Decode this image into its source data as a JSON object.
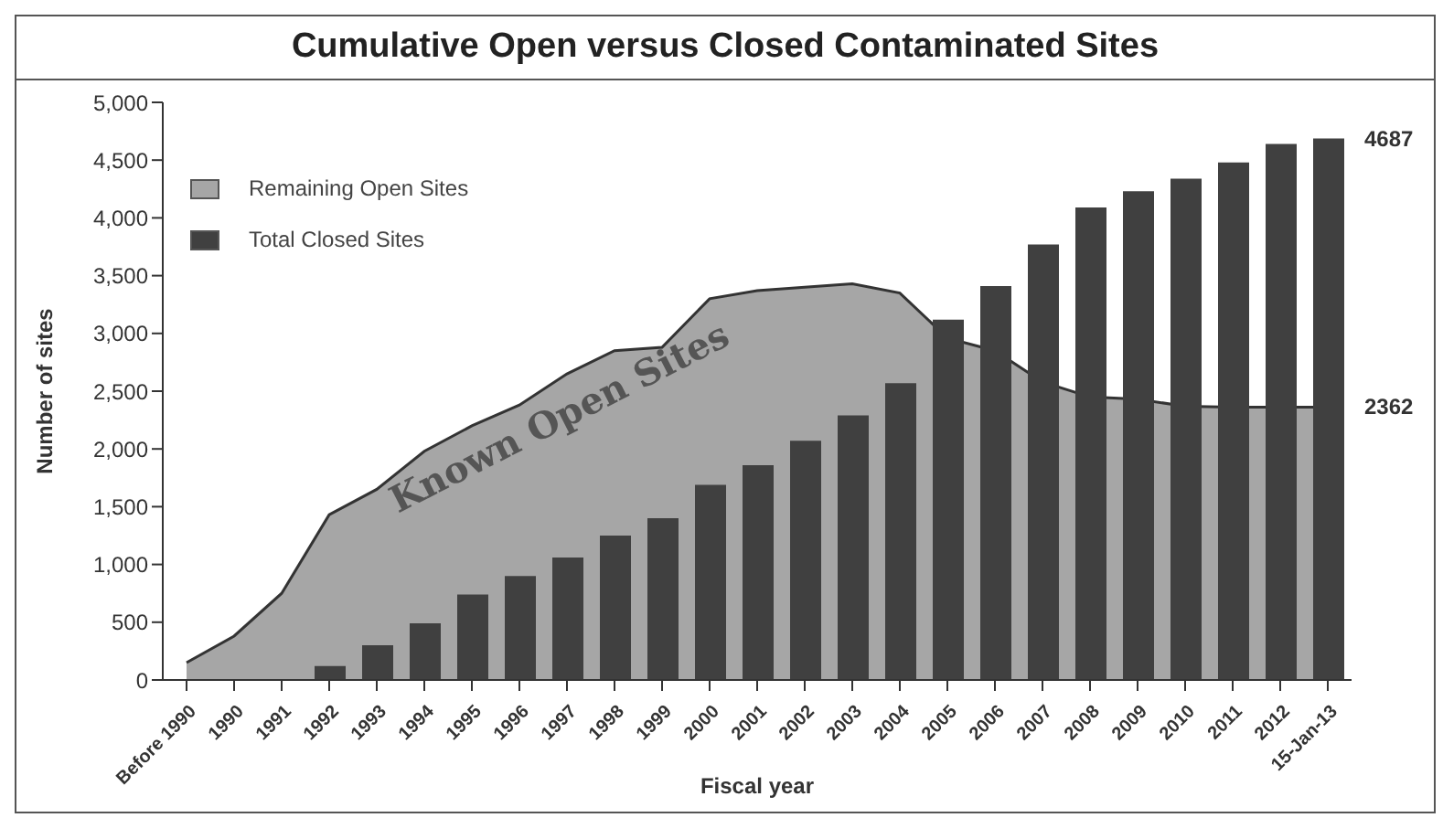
{
  "chart_data": {
    "type": "bar",
    "title": "Cumulative Open versus Closed Contaminated Sites",
    "xlabel": "Fiscal year",
    "ylabel": "Number of sites",
    "categories": [
      "Before 1990",
      "1990",
      "1991",
      "1992",
      "1993",
      "1994",
      "1995",
      "1996",
      "1997",
      "1998",
      "1999",
      "2000",
      "2001",
      "2002",
      "2003",
      "2004",
      "2005",
      "2006",
      "2007",
      "2008",
      "2009",
      "2010",
      "2011",
      "2012",
      "15-Jan-13"
    ],
    "series": [
      {
        "name": "Remaining Open Sites",
        "type": "area",
        "color": "#a6a6a6",
        "values": [
          150,
          380,
          750,
          1430,
          1650,
          1980,
          2200,
          2380,
          2650,
          2850,
          2880,
          3300,
          3370,
          3400,
          3430,
          3350,
          2960,
          2850,
          2580,
          2450,
          2430,
          2370,
          2362,
          2362,
          2362
        ]
      },
      {
        "name": "Total Closed Sites",
        "color": "#404040",
        "values": [
          null,
          null,
          null,
          120,
          300,
          490,
          740,
          900,
          1060,
          1250,
          1400,
          1690,
          1860,
          2070,
          2290,
          2570,
          3120,
          3410,
          3770,
          4090,
          4230,
          4340,
          4480,
          4640,
          4687
        ]
      }
    ],
    "ylim": [
      0,
      5000
    ],
    "yticks": [
      {
        "value": 0,
        "label": "0"
      },
      {
        "value": 500,
        "label": "500"
      },
      {
        "value": 1000,
        "label": "1,000"
      },
      {
        "value": 1500,
        "label": "1,500"
      },
      {
        "value": 2000,
        "label": "2,000"
      },
      {
        "value": 2500,
        "label": "2,500"
      },
      {
        "value": 3000,
        "label": "3,000"
      },
      {
        "value": 3500,
        "label": "3,500"
      },
      {
        "value": 4000,
        "label": "4,000"
      },
      {
        "value": 4500,
        "label": "4,500"
      },
      {
        "value": 5000,
        "label": "5,000"
      }
    ],
    "legend": "top left",
    "annotations": [
      "Known Open Sites",
      {
        "text": "4687",
        "x": "15-Jan-13",
        "y": 4687
      },
      {
        "text": "2362",
        "x": "15-Jan-13",
        "y": 2362
      }
    ]
  }
}
